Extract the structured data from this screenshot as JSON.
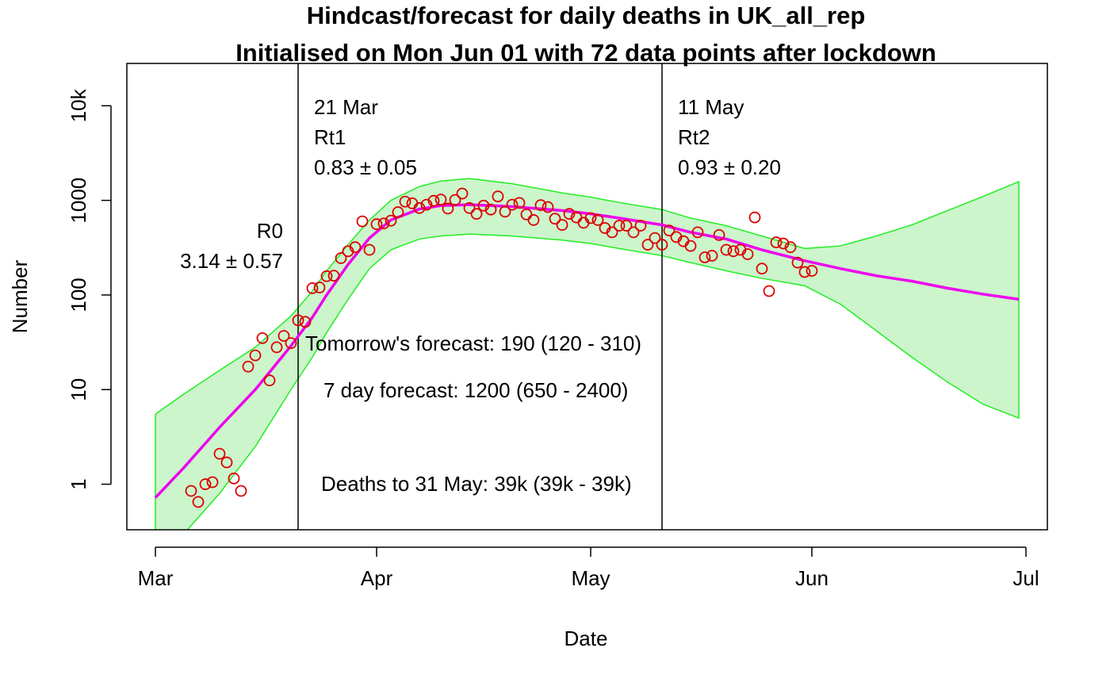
{
  "chart_data": {
    "type": "scatter",
    "title": "Hindcast/forecast for daily deaths in UK_all_rep",
    "subtitle": "Initialised on Mon Jun 01 with 72 data points after lockdown",
    "xlabel": "Date",
    "ylabel": "Number",
    "x_axis": {
      "type": "date",
      "range": [
        "2020-02-26",
        "2020-07-04"
      ],
      "ticks": [
        {
          "date": "2020-03-01",
          "label": "Mar"
        },
        {
          "date": "2020-04-01",
          "label": "Apr"
        },
        {
          "date": "2020-05-01",
          "label": "May"
        },
        {
          "date": "2020-06-01",
          "label": "Jun"
        },
        {
          "date": "2020-07-01",
          "label": "Jul"
        }
      ]
    },
    "y_axis": {
      "scale": "log10",
      "range": [
        0.33,
        28000
      ],
      "ticks": [
        {
          "value": 1,
          "label": "1"
        },
        {
          "value": 10,
          "label": "10"
        },
        {
          "value": 100,
          "label": "100"
        },
        {
          "value": 1000,
          "label": "1000"
        },
        {
          "value": 10000,
          "label": "10k"
        }
      ]
    },
    "grid": false,
    "colors": {
      "points": "#dd0000",
      "fit_line": "#ee00ee",
      "band_fill": "#ccf5cc",
      "band_edge": "#22ee22",
      "vlines": "#000000"
    },
    "observed": {
      "x": [
        "2020-03-06",
        "2020-03-07",
        "2020-03-08",
        "2020-03-09",
        "2020-03-10",
        "2020-03-11",
        "2020-03-12",
        "2020-03-13",
        "2020-03-14",
        "2020-03-15",
        "2020-03-16",
        "2020-03-17",
        "2020-03-18",
        "2020-03-19",
        "2020-03-20",
        "2020-03-21",
        "2020-03-22",
        "2020-03-23",
        "2020-03-24",
        "2020-03-25",
        "2020-03-26",
        "2020-03-27",
        "2020-03-28",
        "2020-03-29",
        "2020-03-30",
        "2020-03-31",
        "2020-04-01",
        "2020-04-02",
        "2020-04-03",
        "2020-04-04",
        "2020-04-05",
        "2020-04-06",
        "2020-04-07",
        "2020-04-08",
        "2020-04-09",
        "2020-04-10",
        "2020-04-11",
        "2020-04-12",
        "2020-04-13",
        "2020-04-14",
        "2020-04-15",
        "2020-04-16",
        "2020-04-17",
        "2020-04-18",
        "2020-04-19",
        "2020-04-20",
        "2020-04-21",
        "2020-04-22",
        "2020-04-23",
        "2020-04-24",
        "2020-04-25",
        "2020-04-26",
        "2020-04-27",
        "2020-04-28",
        "2020-04-29",
        "2020-04-30",
        "2020-05-01",
        "2020-05-02",
        "2020-05-03",
        "2020-05-04",
        "2020-05-05",
        "2020-05-06",
        "2020-05-07",
        "2020-05-08",
        "2020-05-09",
        "2020-05-10",
        "2020-05-11",
        "2020-05-12",
        "2020-05-13",
        "2020-05-14",
        "2020-05-15",
        "2020-05-16",
        "2020-05-17",
        "2020-05-18",
        "2020-05-19",
        "2020-05-20",
        "2020-05-21",
        "2020-05-22",
        "2020-05-23",
        "2020-05-24",
        "2020-05-25",
        "2020-05-26",
        "2020-05-27",
        "2020-05-28",
        "2020-05-29",
        "2020-05-30",
        "2020-05-31",
        "2020-06-01"
      ],
      "y": [
        0.85,
        0.65,
        1,
        1.05,
        2.1,
        1.7,
        1.15,
        0.85,
        17.5,
        23,
        35,
        12.5,
        28,
        37,
        31,
        54,
        52,
        118,
        120,
        158,
        160,
        245,
        290,
        320,
        600,
        300,
        560,
        570,
        610,
        750,
        970,
        930,
        830,
        900,
        990,
        1020,
        820,
        1010,
        1180,
        830,
        720,
        880,
        800,
        1100,
        760,
        900,
        940,
        710,
        620,
        890,
        850,
        640,
        550,
        720,
        660,
        580,
        650,
        620,
        510,
        460,
        540,
        540,
        460,
        540,
        340,
        400,
        340,
        480,
        410,
        370,
        330,
        460,
        250,
        260,
        430,
        300,
        290,
        300,
        270,
        660,
        190,
        110,
        360,
        350,
        320,
        220,
        175,
        180
      ]
    },
    "fit": {
      "x": [
        "2020-03-01",
        "2020-03-05",
        "2020-03-10",
        "2020-03-15",
        "2020-03-20",
        "2020-03-23",
        "2020-03-25",
        "2020-03-28",
        "2020-03-31",
        "2020-04-03",
        "2020-04-07",
        "2020-04-10",
        "2020-04-14",
        "2020-04-20",
        "2020-04-27",
        "2020-05-01",
        "2020-05-05",
        "2020-05-11",
        "2020-05-15",
        "2020-05-20",
        "2020-05-25",
        "2020-05-31",
        "2020-06-05",
        "2020-06-10",
        "2020-06-15",
        "2020-06-20",
        "2020-06-25",
        "2020-06-30"
      ],
      "y": [
        0.72,
        1.5,
        4,
        10,
        29,
        58,
        100,
        210,
        400,
        620,
        810,
        880,
        900,
        860,
        780,
        720,
        650,
        550,
        460,
        390,
        300,
        230,
        190,
        160,
        140,
        118,
        102,
        90
      ]
    },
    "band": {
      "x": [
        "2020-03-01",
        "2020-03-05",
        "2020-03-10",
        "2020-03-15",
        "2020-03-20",
        "2020-03-23",
        "2020-03-25",
        "2020-03-28",
        "2020-03-31",
        "2020-04-03",
        "2020-04-07",
        "2020-04-10",
        "2020-04-14",
        "2020-04-20",
        "2020-04-27",
        "2020-05-01",
        "2020-05-05",
        "2020-05-11",
        "2020-05-15",
        "2020-05-20",
        "2020-05-25",
        "2020-05-31",
        "2020-06-05",
        "2020-06-10",
        "2020-06-15",
        "2020-06-20",
        "2020-06-25",
        "2020-06-30"
      ],
      "upper": [
        5.5,
        9,
        16,
        28,
        60,
        110,
        180,
        340,
        620,
        1000,
        1400,
        1600,
        1700,
        1500,
        1200,
        1080,
        950,
        800,
        650,
        540,
        420,
        310,
        330,
        420,
        550,
        780,
        1100,
        1580
      ],
      "lower": [
        0.28,
        0.3,
        0.8,
        2.5,
        10,
        22,
        40,
        90,
        190,
        300,
        390,
        420,
        440,
        420,
        380,
        350,
        310,
        260,
        220,
        180,
        150,
        125,
        80,
        42,
        22,
        12,
        7,
        5
      ]
    },
    "markers": [
      {
        "date": "2020-03-21",
        "labels": [
          "21 Mar",
          "Rt1",
          "0.83 ± 0.05"
        ]
      },
      {
        "date": "2020-05-11",
        "labels": [
          "11 May",
          "Rt2",
          "0.93 ± 0.20"
        ]
      }
    ],
    "r0": {
      "label": "R0",
      "value": "3.14 ± 0.57"
    },
    "annotations": {
      "tomorrow": "Tomorrow's forecast: 190 (120 - 310)",
      "week": "7 day forecast: 1200 (650 - 2400)",
      "deaths": "Deaths to 31 May: 39k (39k - 39k)"
    }
  }
}
